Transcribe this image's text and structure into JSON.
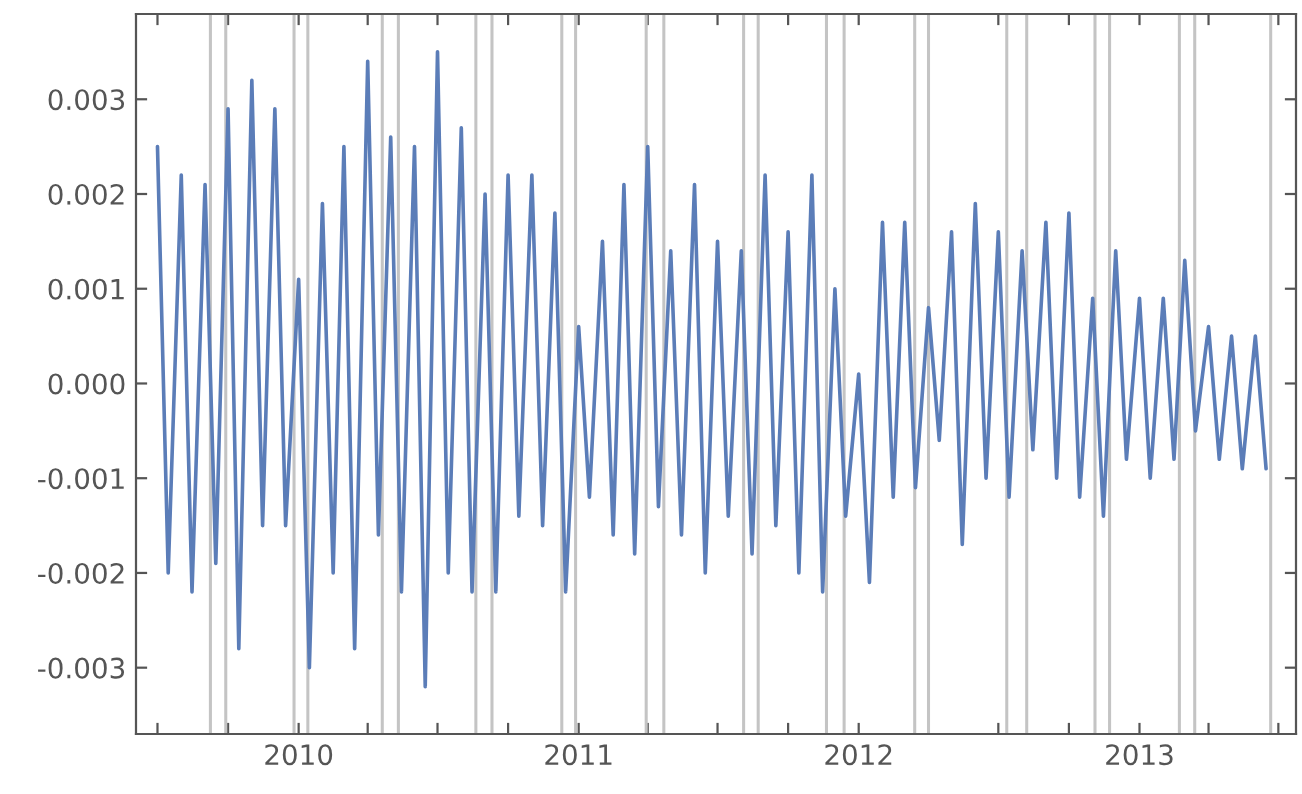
{
  "chart_data": {
    "type": "line",
    "grid": false,
    "legend": false,
    "marker": "none",
    "line_style": "solid",
    "x": [
      "2009-07-01",
      "2009-07-15",
      "2009-08-01",
      "2009-08-15",
      "2009-09-01",
      "2009-09-15",
      "2009-10-01",
      "2009-10-15",
      "2009-11-01",
      "2009-11-15",
      "2009-12-01",
      "2009-12-15",
      "2010-01-01",
      "2010-01-15",
      "2010-02-01",
      "2010-02-15",
      "2010-03-01",
      "2010-03-15",
      "2010-04-01",
      "2010-04-15",
      "2010-05-01",
      "2010-05-15",
      "2010-06-01",
      "2010-06-15",
      "2010-07-01",
      "2010-07-15",
      "2010-08-01",
      "2010-08-15",
      "2010-09-01",
      "2010-09-15",
      "2010-10-01",
      "2010-10-15",
      "2010-11-01",
      "2010-11-15",
      "2010-12-01",
      "2010-12-15",
      "2011-01-01",
      "2011-01-15",
      "2011-02-01",
      "2011-02-15",
      "2011-03-01",
      "2011-03-15",
      "2011-04-01",
      "2011-04-15",
      "2011-05-01",
      "2011-05-15",
      "2011-06-01",
      "2011-06-15",
      "2011-07-01",
      "2011-07-15",
      "2011-08-01",
      "2011-08-15",
      "2011-09-01",
      "2011-09-15",
      "2011-10-01",
      "2011-10-15",
      "2011-11-01",
      "2011-11-15",
      "2011-12-01",
      "2011-12-15",
      "2012-01-01",
      "2012-01-15",
      "2012-02-01",
      "2012-02-15",
      "2012-03-01",
      "2012-03-15",
      "2012-04-01",
      "2012-04-15",
      "2012-05-01",
      "2012-05-15",
      "2012-06-01",
      "2012-06-15",
      "2012-07-01",
      "2012-07-15",
      "2012-08-01",
      "2012-08-15",
      "2012-09-01",
      "2012-09-15",
      "2012-10-01",
      "2012-10-15",
      "2012-11-01",
      "2012-11-15",
      "2012-12-01",
      "2012-12-15",
      "2013-01-01",
      "2013-01-15",
      "2013-02-01",
      "2013-02-15",
      "2013-03-01",
      "2013-03-15",
      "2013-04-01",
      "2013-04-15",
      "2013-05-01",
      "2013-05-15",
      "2013-06-01",
      "2013-06-15"
    ],
    "series": [
      {
        "color": "#5b7db8",
        "values": [
          0.0025,
          -0.002,
          0.0022,
          -0.0022,
          0.0021,
          -0.0019,
          0.0029,
          -0.0028,
          0.0032,
          -0.0015,
          0.0029,
          -0.0015,
          0.0011,
          -0.003,
          0.0019,
          -0.002,
          0.0025,
          -0.0028,
          0.0034,
          -0.0016,
          0.0026,
          -0.0022,
          0.0025,
          -0.0032,
          0.0035,
          -0.002,
          0.0027,
          -0.0022,
          0.002,
          -0.0022,
          0.0022,
          -0.0014,
          0.0022,
          -0.0015,
          0.0018,
          -0.0022,
          0.0006,
          -0.0012,
          0.0015,
          -0.0016,
          0.0021,
          -0.0018,
          0.0025,
          -0.0013,
          0.0014,
          -0.0016,
          0.0021,
          -0.002,
          0.0015,
          -0.0014,
          0.0014,
          -0.0018,
          0.0022,
          -0.0015,
          0.0016,
          -0.002,
          0.0022,
          -0.0022,
          0.001,
          -0.0014,
          0.0001,
          -0.0021,
          0.0017,
          -0.0012,
          0.0017,
          -0.0011,
          0.0008,
          -0.0006,
          0.0016,
          -0.0017,
          0.0019,
          -0.001,
          0.0016,
          -0.0012,
          0.0014,
          -0.0007,
          0.0017,
          -0.001,
          0.0018,
          -0.0012,
          0.0009,
          -0.0014,
          0.0014,
          -0.0008,
          0.0009,
          -0.001,
          0.0009,
          -0.0008,
          0.0013,
          -0.0005,
          0.0006,
          -0.0008,
          0.0005,
          -0.0009,
          0.0005,
          -0.0009
        ]
      }
    ],
    "xlim": [
      "2009-06-03",
      "2013-07-24"
    ],
    "xticks": [
      {
        "value": "2009-07-01",
        "label": null
      },
      {
        "value": "2009-10-01",
        "label": null
      },
      {
        "value": "2010-01-01",
        "label": "2010"
      },
      {
        "value": "2010-04-01",
        "label": null
      },
      {
        "value": "2010-07-01",
        "label": null
      },
      {
        "value": "2010-10-01",
        "label": null
      },
      {
        "value": "2011-01-01",
        "label": "2011"
      },
      {
        "value": "2011-04-01",
        "label": null
      },
      {
        "value": "2011-07-01",
        "label": null
      },
      {
        "value": "2011-10-01",
        "label": null
      },
      {
        "value": "2012-01-01",
        "label": "2012"
      },
      {
        "value": "2012-04-01",
        "label": null
      },
      {
        "value": "2012-07-01",
        "label": null
      },
      {
        "value": "2012-10-01",
        "label": null
      },
      {
        "value": "2013-01-01",
        "label": "2013"
      },
      {
        "value": "2013-04-01",
        "label": null
      },
      {
        "value": "2013-07-01",
        "label": null
      }
    ],
    "ylim": [
      -0.0037,
      0.0039
    ],
    "yticks": [
      {
        "value": -0.003,
        "label": "-0.003"
      },
      {
        "value": -0.002,
        "label": "-0.002"
      },
      {
        "value": -0.001,
        "label": "-0.001"
      },
      {
        "value": 0,
        "label": "0.000"
      },
      0.001,
      0.002,
      0.003
    ],
    "ref_lines": [
      {
        "axis": "x",
        "value": "2009-09-08",
        "color": "#c4c4c4"
      },
      {
        "axis": "x",
        "value": "2009-09-28",
        "color": "#c4c4c4"
      },
      {
        "axis": "x",
        "value": "2009-12-26",
        "color": "#c4c4c4"
      },
      {
        "axis": "x",
        "value": "2010-01-13",
        "color": "#c4c4c4"
      },
      {
        "axis": "x",
        "value": "2010-04-20",
        "color": "#c4c4c4"
      },
      {
        "axis": "x",
        "value": "2010-05-11",
        "color": "#c4c4c4"
      },
      {
        "axis": "x",
        "value": "2010-08-20",
        "color": "#c4c4c4"
      },
      {
        "axis": "x",
        "value": "2010-09-10",
        "color": "#c4c4c4"
      },
      {
        "axis": "x",
        "value": "2010-12-10",
        "color": "#c4c4c4"
      },
      {
        "axis": "x",
        "value": "2010-12-28",
        "color": "#c4c4c4"
      },
      {
        "axis": "x",
        "value": "2011-03-30",
        "color": "#c4c4c4"
      },
      {
        "axis": "x",
        "value": "2011-04-22",
        "color": "#c4c4c4"
      },
      {
        "axis": "x",
        "value": "2011-08-04",
        "color": "#c4c4c4"
      },
      {
        "axis": "x",
        "value": "2011-08-23",
        "color": "#c4c4c4"
      },
      {
        "axis": "x",
        "value": "2011-11-20",
        "color": "#c4c4c4"
      },
      {
        "axis": "x",
        "value": "2011-12-13",
        "color": "#c4c4c4"
      },
      {
        "axis": "x",
        "value": "2012-03-14",
        "color": "#c4c4c4"
      },
      {
        "axis": "x",
        "value": "2012-04-01",
        "color": "#c4c4c4"
      },
      {
        "axis": "x",
        "value": "2012-07-12",
        "color": "#c4c4c4"
      },
      {
        "axis": "x",
        "value": "2012-08-07",
        "color": "#c4c4c4"
      },
      {
        "axis": "x",
        "value": "2012-11-04",
        "color": "#c4c4c4"
      },
      {
        "axis": "x",
        "value": "2012-11-23",
        "color": "#c4c4c4"
      },
      {
        "axis": "x",
        "value": "2013-02-22",
        "color": "#c4c4c4"
      },
      {
        "axis": "x",
        "value": "2013-03-14",
        "color": "#c4c4c4"
      },
      {
        "axis": "x",
        "value": "2013-06-21",
        "color": "#c4c4c4"
      }
    ]
  }
}
